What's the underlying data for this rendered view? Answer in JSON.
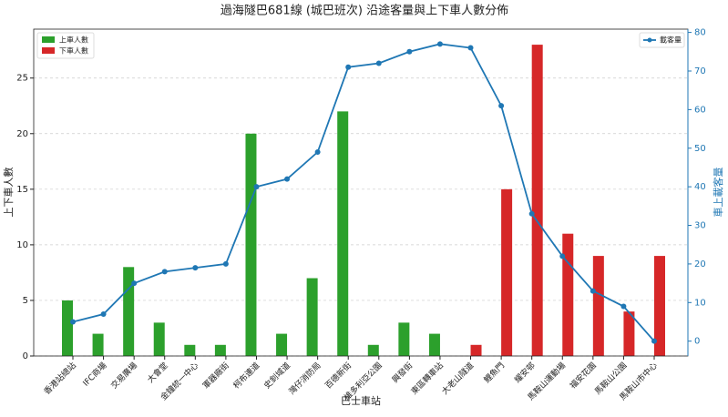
{
  "chart_data": {
    "type": "bar_line",
    "title": "過海隧巴681線 (城巴班次) 沿途客量與上下車人數分佈",
    "x_label": "巴士車站",
    "y_label": "上下車人數",
    "y2_label": "車上載客量",
    "categories": [
      "香港站總站",
      "IFC商場",
      "交易廣場",
      "大會堂",
      "金鐘統一中心",
      "軍器廠街",
      "柯布連道",
      "史釗域道",
      "灣仔消防局",
      "百德新街",
      "維多利亞公園",
      "興發街",
      "東區轉車站",
      "大老山隧道",
      "鯉魚門",
      "耀安邨",
      "馬鞍山運動場",
      "福安花園",
      "馬鞍山公園",
      "馬鞍山市中心"
    ],
    "series": [
      {
        "name": "上車人數",
        "color": "#2ca02c",
        "values": [
          5,
          2,
          8,
          3,
          1,
          1,
          20,
          2,
          7,
          22,
          1,
          3,
          2,
          0,
          0,
          0,
          0,
          0,
          0,
          0
        ]
      },
      {
        "name": "下車人數",
        "color": "#d62728",
        "values": [
          0,
          0,
          0,
          0,
          0,
          0,
          0,
          0,
          0,
          0,
          0,
          0,
          0,
          1,
          15,
          28,
          11,
          9,
          4,
          9
        ]
      },
      {
        "name": "載客量",
        "color": "#1f77b4",
        "axis": "y2",
        "values": [
          5,
          7,
          15,
          18,
          19,
          20,
          40,
          42,
          49,
          71,
          72,
          75,
          77,
          76,
          61,
          33,
          22,
          13,
          9,
          0
        ]
      }
    ],
    "ylim": [
      0,
      29.4
    ],
    "yticks": [
      0,
      5,
      10,
      15,
      20,
      25
    ],
    "y2lim": [
      -3.85,
      80.85
    ],
    "y2ticks": [
      0,
      10,
      20,
      30,
      40,
      50,
      60,
      70,
      80
    ],
    "grid": true
  }
}
